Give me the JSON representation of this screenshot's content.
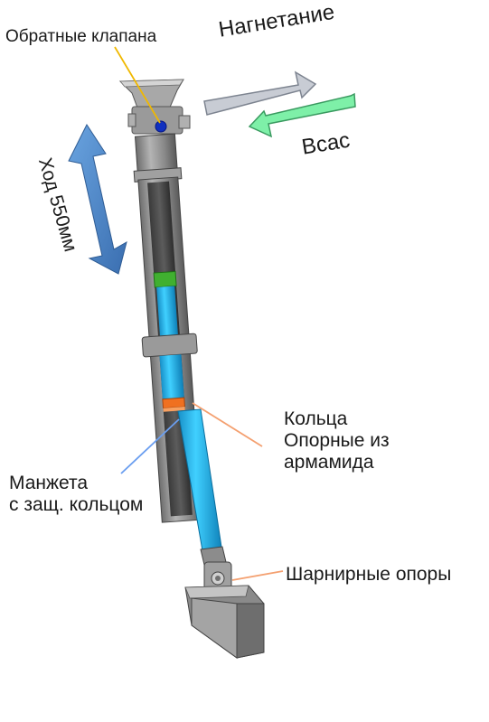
{
  "labels": {
    "check_valves": "Обратные клапана",
    "discharge": "Нагнетание",
    "suction": "Всас",
    "stroke": "Ход 550мм",
    "rings_line1": "Кольца",
    "rings_line2": "Опорные из",
    "rings_line3": "армамида",
    "cuff_line1": "Манжета",
    "cuff_line2": "с защ. кольцом",
    "hinge_supports": "Шарнирные опоры"
  },
  "colors": {
    "body_gray": "#8c8c8c",
    "rod_cyan": "#20b8e8",
    "valve_blue": "#1030c0",
    "green_part": "#40b030",
    "orange_ring": "#f07020",
    "stroke_arrow": "#4a86c8",
    "discharge_arrow": "#c8ccd4",
    "suction_arrow": "#7ef0a8",
    "valve_pointer": "#f0b800",
    "ring_pointer": "#f4a070",
    "cuff_pointer": "#6a9ef0"
  },
  "icons": [
    "stroke-arrow-icon",
    "discharge-arrow-icon",
    "suction-arrow-icon"
  ]
}
